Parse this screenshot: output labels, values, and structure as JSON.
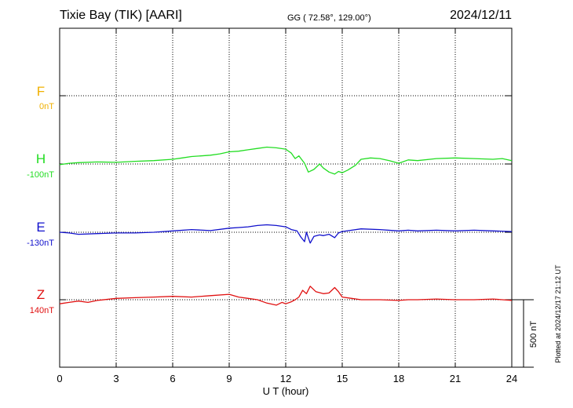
{
  "header": {
    "station": "Tixie Bay (TIK)  [AARI]",
    "coords": "GG ( 72.58°, 129.00°)",
    "date": "2024/12/11"
  },
  "side_note": "Plotted at 2024/12/17 21:12 UT",
  "scale_bar_label": "500 nT",
  "chart_data": {
    "type": "line",
    "xlabel": "U T (hour)",
    "xlim": [
      0,
      24
    ],
    "xticks": [
      0,
      3,
      6,
      9,
      12,
      15,
      18,
      21,
      24
    ],
    "scale_bar_nT": 500,
    "grid": true,
    "series": [
      {
        "name": "F",
        "offset_label": "0nT",
        "color": "#f0b000",
        "points": []
      },
      {
        "name": "H",
        "offset_label": "-100nT",
        "color": "#22dd22",
        "points": [
          [
            0,
            -105
          ],
          [
            0.5,
            -95
          ],
          [
            1,
            -90
          ],
          [
            2,
            -85
          ],
          [
            3,
            -88
          ],
          [
            4,
            -80
          ],
          [
            5,
            -75
          ],
          [
            6,
            -65
          ],
          [
            6.5,
            -55
          ],
          [
            7,
            -45
          ],
          [
            7.5,
            -40
          ],
          [
            8,
            -35
          ],
          [
            8.5,
            -25
          ],
          [
            9,
            -10
          ],
          [
            9.5,
            -5
          ],
          [
            10,
            5
          ],
          [
            10.5,
            15
          ],
          [
            11,
            25
          ],
          [
            11.5,
            20
          ],
          [
            12,
            10
          ],
          [
            12.3,
            -20
          ],
          [
            12.5,
            -60
          ],
          [
            12.7,
            -40
          ],
          [
            13,
            -95
          ],
          [
            13.2,
            -160
          ],
          [
            13.5,
            -140
          ],
          [
            13.8,
            -100
          ],
          [
            14,
            -130
          ],
          [
            14.3,
            -160
          ],
          [
            14.6,
            -175
          ],
          [
            14.8,
            -155
          ],
          [
            15,
            -165
          ],
          [
            15.3,
            -145
          ],
          [
            15.7,
            -110
          ],
          [
            16,
            -65
          ],
          [
            16.5,
            -55
          ],
          [
            17,
            -60
          ],
          [
            17.5,
            -75
          ],
          [
            18,
            -95
          ],
          [
            18.5,
            -70
          ],
          [
            19,
            -75
          ],
          [
            20,
            -60
          ],
          [
            21,
            -55
          ],
          [
            22,
            -60
          ],
          [
            23,
            -65
          ],
          [
            23.5,
            -60
          ],
          [
            24,
            -75
          ]
        ]
      },
      {
        "name": "E",
        "offset_label": "-130nT",
        "color": "#1010cc",
        "points": [
          [
            0,
            -130
          ],
          [
            0.5,
            -135
          ],
          [
            1,
            -145
          ],
          [
            2,
            -140
          ],
          [
            3,
            -135
          ],
          [
            4,
            -135
          ],
          [
            5,
            -130
          ],
          [
            6,
            -120
          ],
          [
            7,
            -110
          ],
          [
            8,
            -118
          ],
          [
            9,
            -100
          ],
          [
            9.5,
            -95
          ],
          [
            10,
            -90
          ],
          [
            10.5,
            -80
          ],
          [
            11,
            -75
          ],
          [
            11.5,
            -80
          ],
          [
            12,
            -90
          ],
          [
            12.3,
            -110
          ],
          [
            12.6,
            -120
          ],
          [
            12.8,
            -165
          ],
          [
            13,
            -200
          ],
          [
            13.1,
            -130
          ],
          [
            13.3,
            -210
          ],
          [
            13.5,
            -160
          ],
          [
            13.8,
            -150
          ],
          [
            14,
            -155
          ],
          [
            14.3,
            -145
          ],
          [
            14.6,
            -170
          ],
          [
            14.8,
            -135
          ],
          [
            15,
            -125
          ],
          [
            15.5,
            -115
          ],
          [
            16,
            -105
          ],
          [
            17,
            -110
          ],
          [
            18,
            -120
          ],
          [
            18.5,
            -115
          ],
          [
            19,
            -120
          ],
          [
            20,
            -115
          ],
          [
            21,
            -120
          ],
          [
            22,
            -115
          ],
          [
            23,
            -120
          ],
          [
            24,
            -125
          ]
        ]
      },
      {
        "name": "Z",
        "offset_label": "140nT",
        "color": "#e01010",
        "points": [
          [
            0,
            110
          ],
          [
            0.5,
            120
          ],
          [
            1,
            130
          ],
          [
            1.5,
            120
          ],
          [
            2,
            135
          ],
          [
            3,
            150
          ],
          [
            4,
            155
          ],
          [
            5,
            160
          ],
          [
            6,
            165
          ],
          [
            7,
            160
          ],
          [
            8,
            170
          ],
          [
            9,
            180
          ],
          [
            9.5,
            160
          ],
          [
            10,
            150
          ],
          [
            10.5,
            140
          ],
          [
            11,
            115
          ],
          [
            11.5,
            100
          ],
          [
            11.8,
            120
          ],
          [
            12,
            110
          ],
          [
            12.3,
            125
          ],
          [
            12.5,
            140
          ],
          [
            12.7,
            160
          ],
          [
            12.9,
            210
          ],
          [
            13.1,
            185
          ],
          [
            13.3,
            240
          ],
          [
            13.6,
            200
          ],
          [
            14,
            185
          ],
          [
            14.3,
            190
          ],
          [
            14.6,
            230
          ],
          [
            14.8,
            200
          ],
          [
            15,
            160
          ],
          [
            15.5,
            150
          ],
          [
            16,
            140
          ],
          [
            17,
            140
          ],
          [
            18,
            135
          ],
          [
            18.5,
            140
          ],
          [
            19,
            140
          ],
          [
            20,
            145
          ],
          [
            21,
            140
          ],
          [
            22,
            140
          ],
          [
            23,
            145
          ],
          [
            24,
            135
          ]
        ]
      }
    ]
  }
}
